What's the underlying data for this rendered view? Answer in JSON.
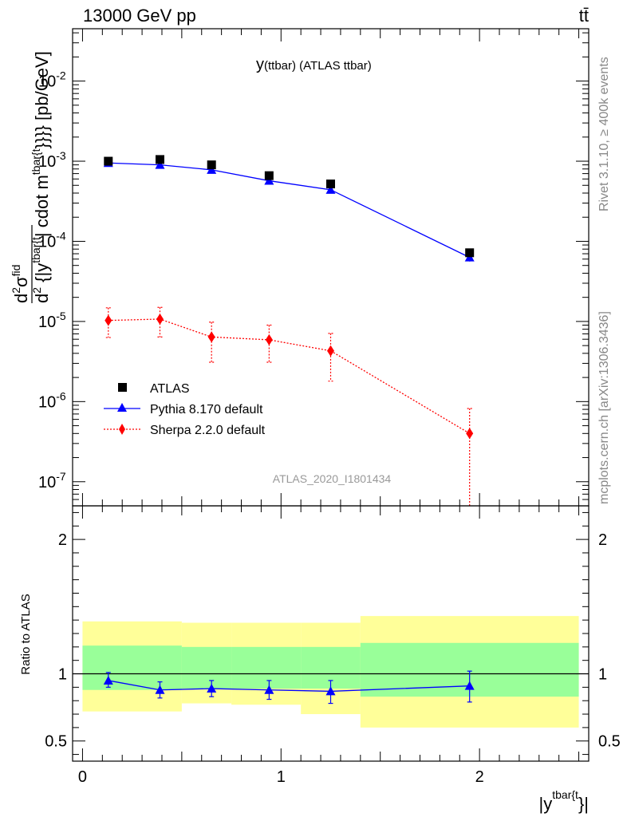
{
  "header": {
    "energy_label": "13000 GeV pp",
    "process_label": "tt̄"
  },
  "side_labels": {
    "rivet": "Rivet 3.1.10, ≥ 400k events",
    "mcplots": "mcplots.cern.ch [arXiv:1306.3436]"
  },
  "chart_data": [
    {
      "type": "scatter",
      "title": "y(ttbar) (ATLAS ttbar)",
      "title_main": "y",
      "title_sub": "(ttbar)  (ATLAS ttbar)",
      "watermark": "ATLAS_2020_I1801434",
      "ylabel": "d²σ^fid / d²{|y^tbar{t}|} cdot m^tbar{t}}}} [pb/GeV]",
      "ylabel_pieces": {
        "d": "d",
        "d2": "2",
        "sigma": "σ",
        "fid": "fid",
        "den": "d",
        "den2": "2",
        "den_text": " {|y",
        "den_sup": "tbar{t",
        "rest": "| cdot m",
        "rest_sup": "tbar{t",
        "rest_tail": "}}}} [pb/GeV]"
      },
      "yscale": "log",
      "ylim": [
        5e-08,
        0.045
      ],
      "xlim": [
        -0.05,
        2.55
      ],
      "y_tick_labels": [
        {
          "base": "10",
          "exp": "-7",
          "value": 1e-07
        },
        {
          "base": "10",
          "exp": "-6",
          "value": 1e-06
        },
        {
          "base": "10",
          "exp": "-5",
          "value": 1e-05
        },
        {
          "base": "10",
          "exp": "-4",
          "value": 0.0001
        },
        {
          "base": "10",
          "exp": "-3",
          "value": 0.001
        },
        {
          "base": "10",
          "exp": "-2",
          "value": 0.01
        }
      ],
      "bin_edges": [
        0.0,
        0.5,
        0.75,
        1.1,
        1.4,
        2.5
      ],
      "legend": [
        {
          "label": "ATLAS",
          "marker": "square",
          "color": "#000000"
        },
        {
          "label": "Pythia 8.170 default",
          "marker": "triangle",
          "color": "#0000ff"
        },
        {
          "label": "Sherpa 2.2.0 default",
          "marker": "diamond",
          "color": "#ff0000"
        }
      ],
      "series": [
        {
          "name": "ATLAS",
          "color": "#000000",
          "x": [
            0.13,
            0.39,
            0.65,
            0.94,
            1.25,
            1.95
          ],
          "y": [
            0.001,
            0.00105,
            0.0009,
            0.00066,
            0.00052,
            7.2e-05
          ],
          "err": [
            0,
            0,
            0,
            0,
            0,
            0
          ]
        },
        {
          "name": "Pythia 8.170 default",
          "color": "#0000ff",
          "x": [
            0.13,
            0.39,
            0.65,
            0.94,
            1.25,
            1.95
          ],
          "y": [
            0.00095,
            0.0009,
            0.00078,
            0.00057,
            0.00044,
            6.3e-05
          ],
          "err": [
            6e-05,
            5e-05,
            4e-05,
            3e-05,
            2.5e-05,
            7e-06
          ]
        },
        {
          "name": "Sherpa 2.2.0 default",
          "color": "#ff0000",
          "x": [
            0.13,
            0.39,
            0.65,
            0.94,
            1.25,
            1.95
          ],
          "y": [
            1.03e-05,
            1.07e-05,
            6.4e-06,
            5.9e-06,
            4.3e-06,
            4e-07
          ],
          "err_lo": [
            4e-06,
            4.3e-06,
            3.3e-06,
            2.8e-06,
            2.5e-06,
            3.7e-07
          ],
          "err_hi": [
            4.5e-06,
            4.3e-06,
            3.4e-06,
            3.1e-06,
            2.8e-06,
            4.2e-07
          ]
        }
      ]
    },
    {
      "type": "scatter",
      "ylabel": "Ratio to ATLAS",
      "xlabel": "|y^tbar{t}}|",
      "xlabel_pieces": {
        "main": "|y",
        "sup": "tbar{t",
        "tail": "}|"
      },
      "ylim": [
        0.35,
        2.25
      ],
      "xlim": [
        -0.05,
        2.55
      ],
      "x_tick_labels": [
        {
          "label": "0",
          "value": 0
        },
        {
          "label": "1",
          "value": 1
        },
        {
          "label": "2",
          "value": 2
        }
      ],
      "y_tick_labels": [
        {
          "label": "0.5",
          "value": 0.5
        },
        {
          "label": "1",
          "value": 1
        },
        {
          "label": "2",
          "value": 2
        }
      ],
      "bands": {
        "bin_edges": [
          0.0,
          0.5,
          0.75,
          1.1,
          1.4,
          2.5
        ],
        "yellow_lo": [
          0.72,
          0.78,
          0.77,
          0.7,
          0.6
        ],
        "yellow_hi": [
          1.39,
          1.38,
          1.38,
          1.38,
          1.43
        ],
        "green_lo": [
          0.88,
          0.89,
          0.89,
          0.89,
          0.83
        ],
        "green_hi": [
          1.21,
          1.2,
          1.2,
          1.2,
          1.23
        ],
        "yellow_color": "#ffff99",
        "green_color": "#99ff99"
      },
      "series": [
        {
          "name": "Pythia 8.170 default",
          "color": "#0000ff",
          "x": [
            0.13,
            0.39,
            0.65,
            0.94,
            1.25,
            1.95
          ],
          "y": [
            0.95,
            0.88,
            0.89,
            0.88,
            0.87,
            0.91
          ],
          "err_lo": [
            0.05,
            0.06,
            0.06,
            0.07,
            0.09,
            0.12
          ],
          "err_hi": [
            0.06,
            0.06,
            0.06,
            0.07,
            0.08,
            0.11
          ]
        }
      ]
    }
  ]
}
